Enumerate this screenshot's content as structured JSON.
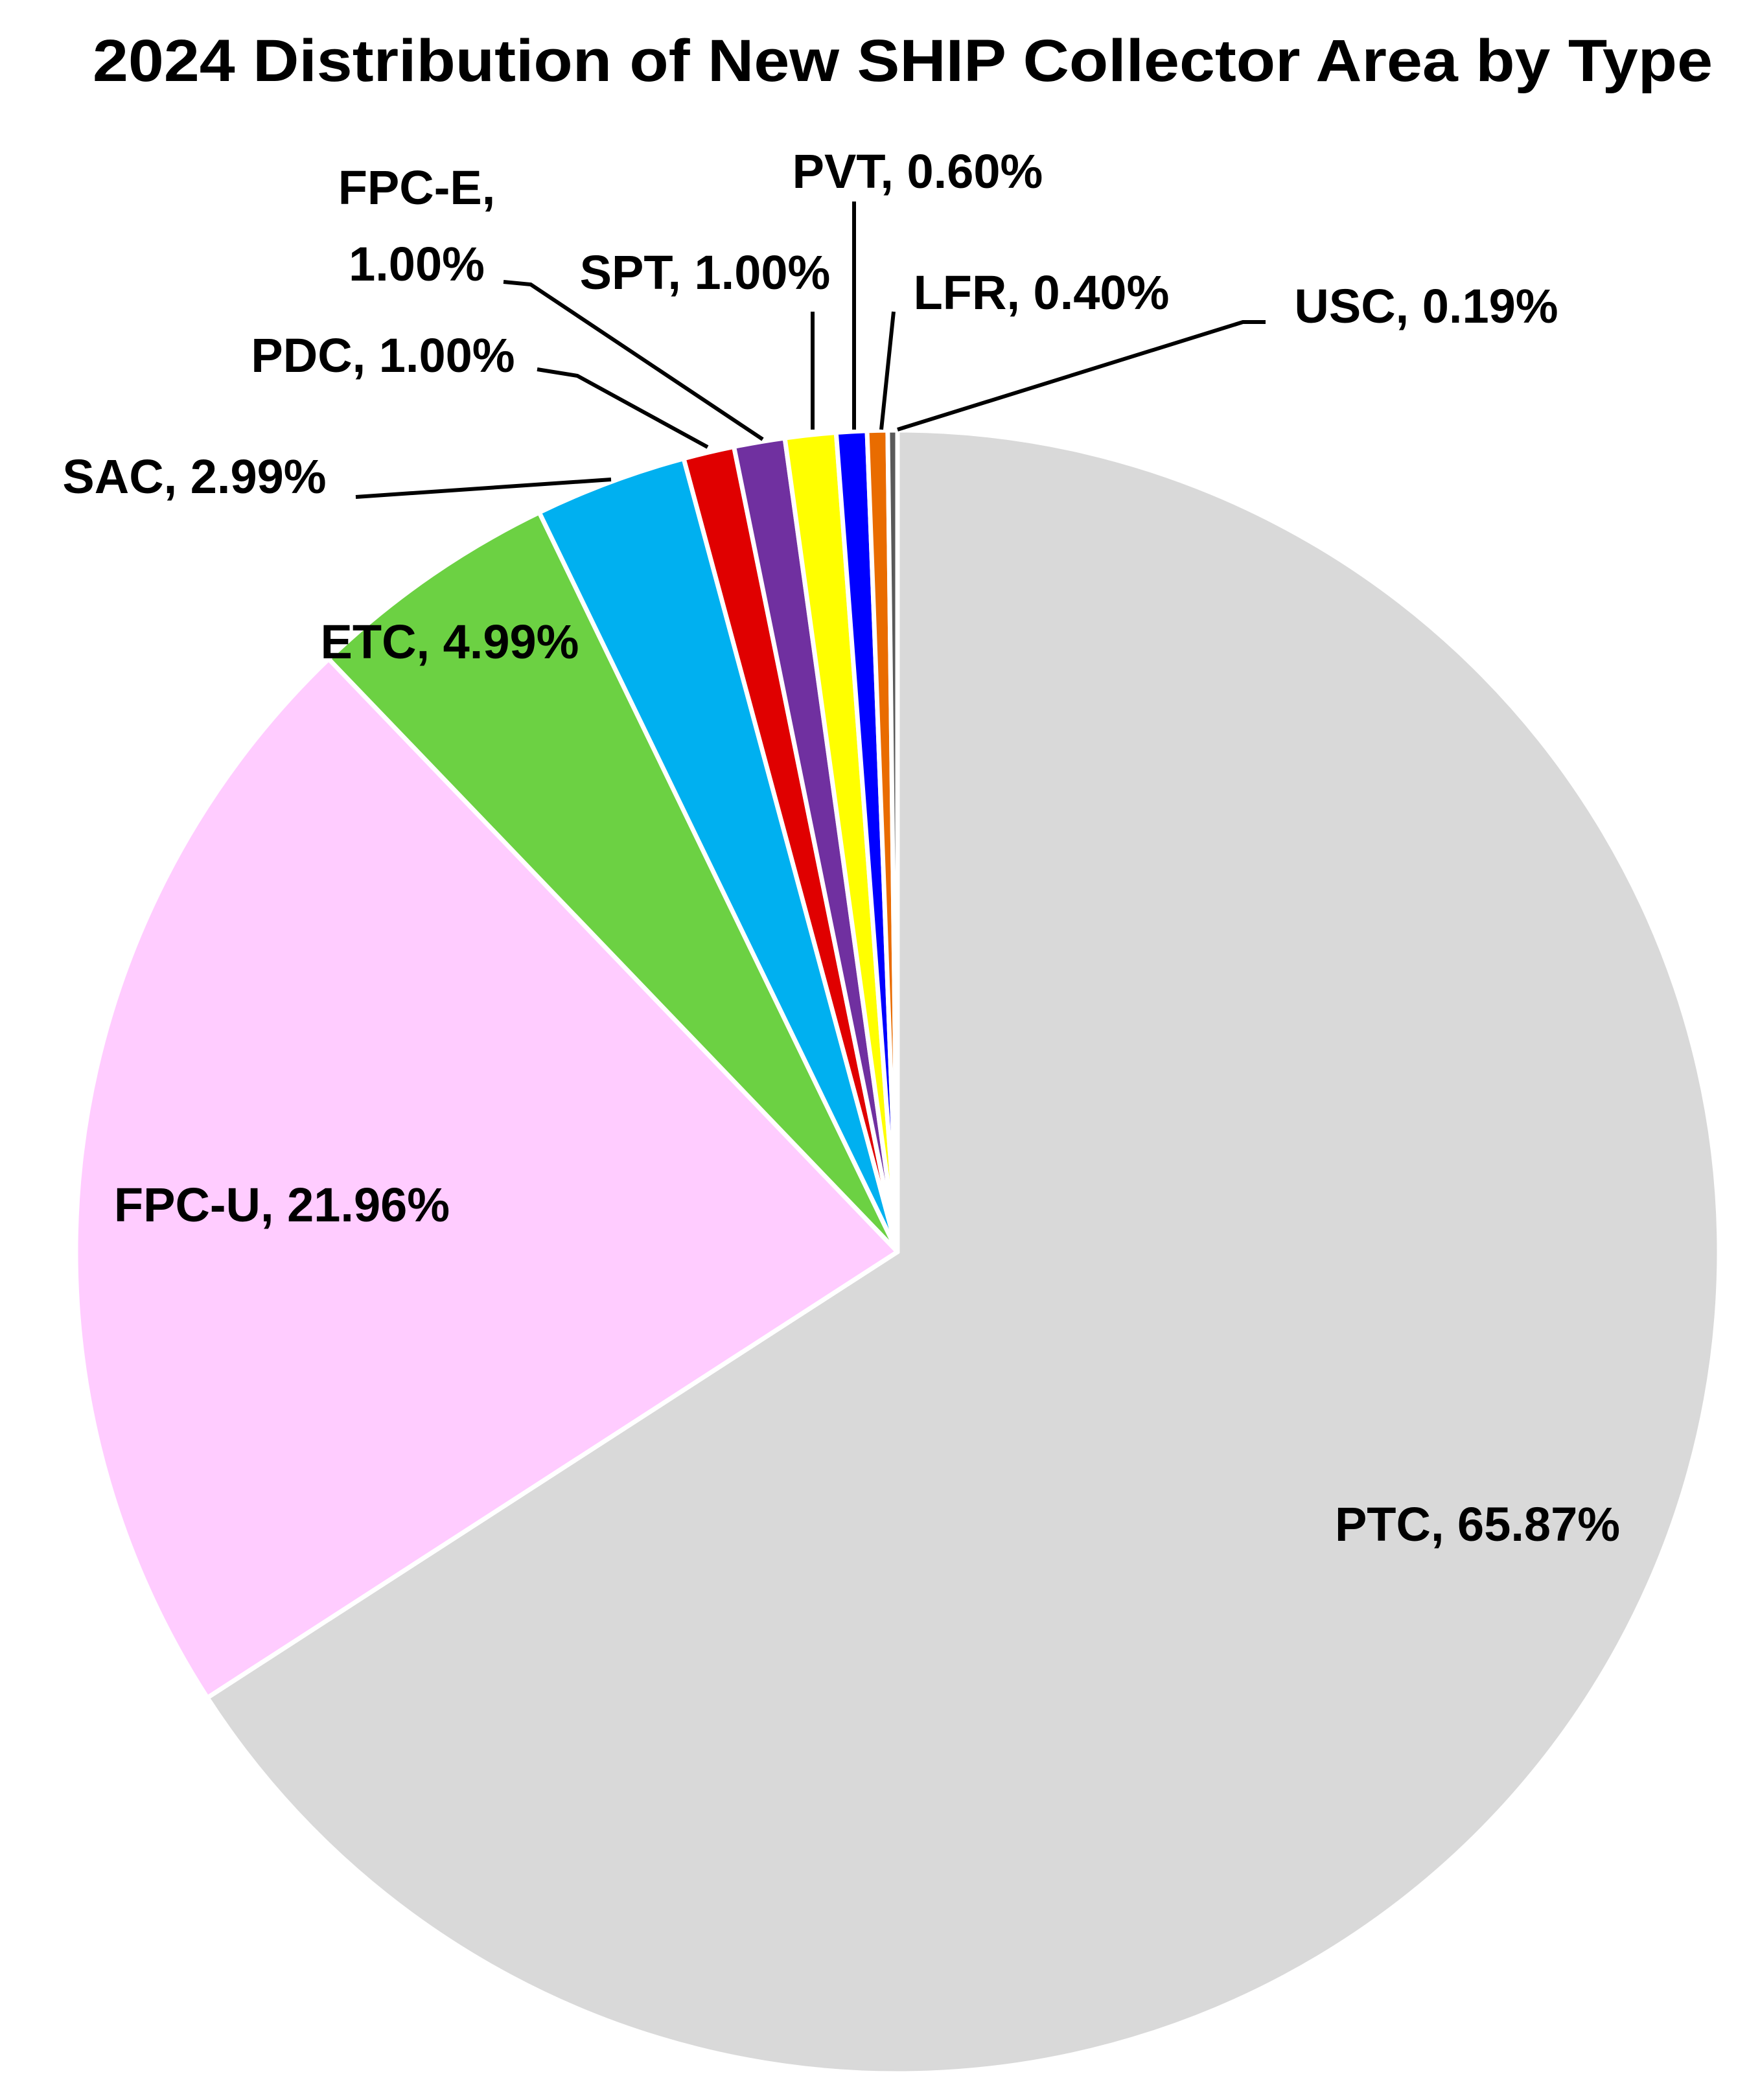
{
  "chart_data": {
    "type": "pie",
    "title": "2024 Distribution of New SHIP Collector Area by Type",
    "start": "12 o'clock, clockwise",
    "slices": [
      {
        "name": "PTC",
        "value": 65.87,
        "label": "PTC, 65.87%",
        "color": "#D9D9D9"
      },
      {
        "name": "FPC-U",
        "value": 21.96,
        "label": "FPC-U, 21.96%",
        "color": "#FFCCFF"
      },
      {
        "name": "ETC",
        "value": 4.99,
        "label": "ETC, 4.99%",
        "color": "#6CD143"
      },
      {
        "name": "SAC",
        "value": 2.99,
        "label": "SAC, 2.99%",
        "color": "#00B0F0"
      },
      {
        "name": "PDC",
        "value": 1.0,
        "label": "PDC, 1.00%",
        "color": "#E00000"
      },
      {
        "name": "FPC-E",
        "value": 1.0,
        "label_line1": "FPC-E,",
        "label_line2": "1.00%",
        "color": "#7030A0"
      },
      {
        "name": "SPT",
        "value": 1.0,
        "label": "SPT, 1.00%",
        "color": "#FFFF00"
      },
      {
        "name": "PVT",
        "value": 0.6,
        "label": "PVT, 0.60%",
        "color": "#0000FF"
      },
      {
        "name": "LFR",
        "value": 0.4,
        "label": "LFR, 0.40%",
        "color": "#E96C00"
      },
      {
        "name": "USC",
        "value": 0.19,
        "label": "USC, 0.19%",
        "color": "#595959"
      }
    ]
  }
}
